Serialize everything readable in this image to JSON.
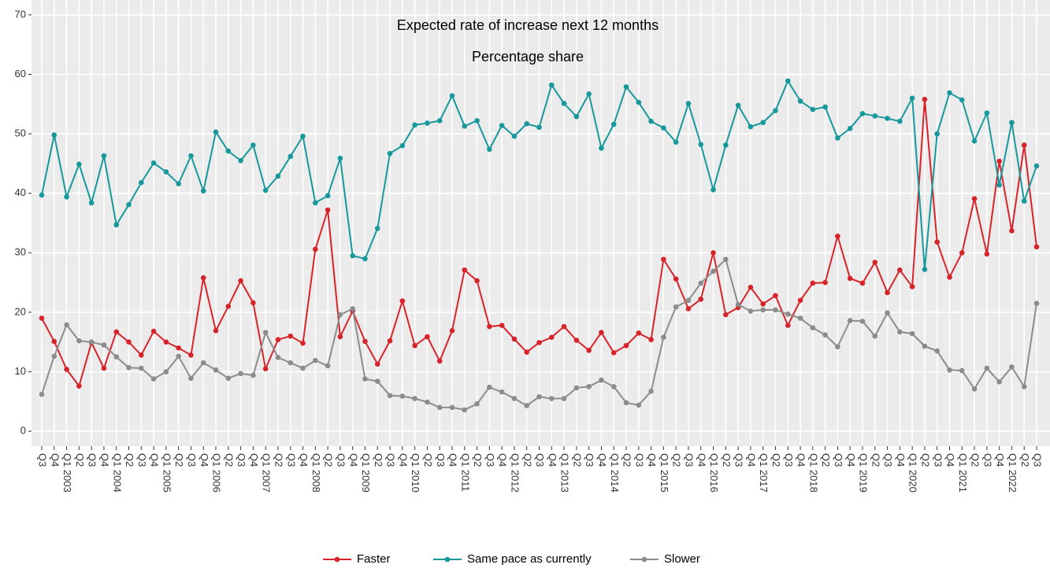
{
  "chart_data": {
    "type": "line",
    "title": "Expected rate of increase next 12 months",
    "subtitle": "Percentage share",
    "categories": [
      "Q3",
      "Q4",
      "Q1 2003",
      "Q2",
      "Q3",
      "Q4",
      "Q1 2004",
      "Q2",
      "Q3",
      "Q4",
      "Q1 2005",
      "Q2",
      "Q3",
      "Q4",
      "Q1 2006",
      "Q2",
      "Q3",
      "Q4",
      "Q1 2007",
      "Q2",
      "Q3",
      "Q4",
      "Q1 2008",
      "Q2",
      "Q3",
      "Q4",
      "Q1 2009",
      "Q2",
      "Q3",
      "Q4",
      "Q1 2010",
      "Q2",
      "Q3",
      "Q4",
      "Q1 2011",
      "Q2",
      "Q3",
      "Q4",
      "Q1 2012",
      "Q2",
      "Q3",
      "Q4",
      "Q1 2013",
      "Q2",
      "Q3",
      "Q4",
      "Q1 2014",
      "Q2",
      "Q3",
      "Q4",
      "Q1 2015",
      "Q2",
      "Q3",
      "Q4",
      "Q1 2016",
      "Q2",
      "Q3",
      "Q4",
      "Q1 2017",
      "Q2",
      "Q3",
      "Q4",
      "Q1 2018",
      "Q2",
      "Q3",
      "Q4",
      "Q1 2019",
      "Q2",
      "Q3",
      "Q4",
      "Q1 2020",
      "Q2",
      "Q3",
      "Q4",
      "Q1 2021",
      "Q2",
      "Q3",
      "Q4",
      "Q1 2022",
      "Q2",
      "Q3"
    ],
    "series": [
      {
        "name": "Faster",
        "color": "#d7242b",
        "values": [
          19.0,
          15.1,
          10.4,
          7.6,
          14.9,
          10.6,
          16.7,
          15.0,
          12.8,
          16.8,
          15.0,
          14.0,
          12.8,
          25.8,
          16.9,
          21.0,
          25.3,
          21.6,
          10.5,
          15.4,
          16.0,
          14.8,
          30.6,
          37.2,
          15.9,
          20.2,
          15.1,
          11.3,
          15.2,
          21.9,
          14.4,
          15.9,
          11.8,
          16.9,
          27.1,
          25.3,
          17.6,
          17.8,
          15.5,
          13.3,
          14.9,
          15.8,
          17.6,
          15.3,
          13.6,
          16.6,
          13.2,
          14.4,
          16.5,
          15.4,
          28.9,
          25.6,
          20.6,
          22.2,
          30.0,
          19.6,
          20.8,
          24.2,
          21.4,
          22.8,
          17.8,
          22.0,
          24.9,
          25.0,
          32.8,
          25.7,
          24.9,
          28.4,
          23.3,
          27.1,
          24.3,
          55.8,
          31.8,
          25.9,
          30.0,
          39.1,
          29.8,
          45.4,
          33.7,
          48.1,
          31.0
        ]
      },
      {
        "name": "Same pace as currently",
        "color": "#17989b",
        "values": [
          39.7,
          49.8,
          39.4,
          44.9,
          38.4,
          46.3,
          34.7,
          38.1,
          41.8,
          45.1,
          43.6,
          41.6,
          46.3,
          40.4,
          50.3,
          47.1,
          45.5,
          48.1,
          40.5,
          42.9,
          46.2,
          49.6,
          38.4,
          39.6,
          45.9,
          29.5,
          29.0,
          34.1,
          46.7,
          48.0,
          51.5,
          51.8,
          52.2,
          56.4,
          51.3,
          52.2,
          47.4,
          51.4,
          49.6,
          51.7,
          51.1,
          58.2,
          55.1,
          52.9,
          56.7,
          47.6,
          51.6,
          57.9,
          55.3,
          52.1,
          51.0,
          48.6,
          55.1,
          48.2,
          40.6,
          48.1,
          54.8,
          51.2,
          51.9,
          53.9,
          58.9,
          55.5,
          54.1,
          54.5,
          49.3,
          50.9,
          53.4,
          53.0,
          52.6,
          52.1,
          56.0,
          27.2,
          50.0,
          56.9,
          55.7,
          48.8,
          53.5,
          41.4,
          51.9,
          38.7,
          44.6
        ]
      },
      {
        "name": "Slower",
        "color": "#8c8c8c",
        "values": [
          6.2,
          12.6,
          17.9,
          15.2,
          15.0,
          14.5,
          12.5,
          10.7,
          10.6,
          8.8,
          10.0,
          12.6,
          8.9,
          11.5,
          10.3,
          8.9,
          9.7,
          9.4,
          16.6,
          12.4,
          11.5,
          10.6,
          11.9,
          11.0,
          19.6,
          20.6,
          8.8,
          8.4,
          6.0,
          5.9,
          5.5,
          4.9,
          4.0,
          4.0,
          3.6,
          4.6,
          7.4,
          6.6,
          5.5,
          4.3,
          5.8,
          5.5,
          5.5,
          7.3,
          7.5,
          8.6,
          7.5,
          4.8,
          4.4,
          6.7,
          15.8,
          20.9,
          22.0,
          24.9,
          26.9,
          28.9,
          21.3,
          20.2,
          20.4,
          20.4,
          19.7,
          19.0,
          17.4,
          16.2,
          14.2,
          18.6,
          18.5,
          16.0,
          19.9,
          16.7,
          16.4,
          14.3,
          13.5,
          10.3,
          10.2,
          7.1,
          10.6,
          8.3,
          10.8,
          7.5,
          21.5
        ]
      }
    ],
    "ylim": [
      -2.5,
      72.5
    ],
    "yticks": [
      0,
      10,
      20,
      30,
      40,
      50,
      60,
      70
    ],
    "grid": true,
    "legend": "bottom"
  }
}
